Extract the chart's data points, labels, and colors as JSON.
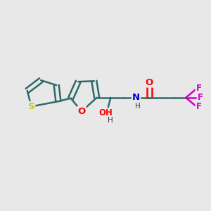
{
  "bg_color": "#e8e8e8",
  "bond_color": "#2d6b6b",
  "bond_width": 1.8,
  "atom_colors": {
    "S": "#cccc00",
    "O": "#ff0000",
    "N": "#0000cc",
    "F": "#cc00cc",
    "H": "#000000",
    "C": "#2d6b6b"
  },
  "font_size": 8.5,
  "figsize": [
    3.0,
    3.0
  ],
  "dpi": 100
}
